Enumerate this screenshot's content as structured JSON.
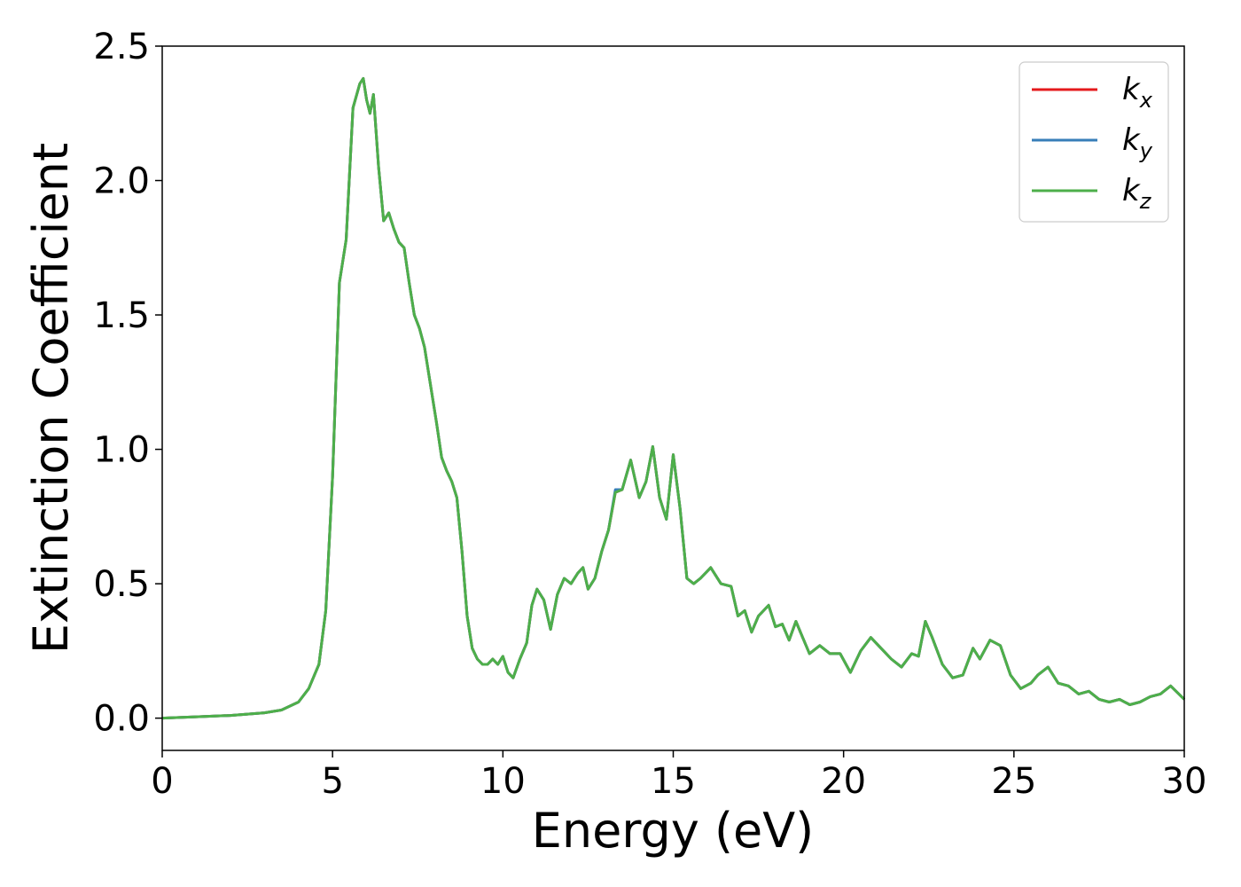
{
  "chart_data": {
    "type": "line",
    "xlabel": "Energy (eV)",
    "ylabel": "Extinction Coefficient",
    "xlim": [
      0,
      30
    ],
    "ylim": [
      -0.12,
      2.5
    ],
    "xticks": [
      "0",
      "5",
      "10",
      "15",
      "20",
      "25",
      "30"
    ],
    "yticks": [
      "0.0",
      "0.5",
      "1.0",
      "1.5",
      "2.0",
      "2.5"
    ],
    "grid": false,
    "legend_position": "top-right",
    "x": [
      0,
      1,
      2,
      3,
      3.5,
      4,
      4.3,
      4.6,
      4.8,
      5,
      5.2,
      5.4,
      5.6,
      5.8,
      5.9,
      6,
      6.1,
      6.2,
      6.35,
      6.5,
      6.65,
      6.8,
      6.95,
      7.1,
      7.25,
      7.4,
      7.55,
      7.7,
      7.9,
      8.05,
      8.2,
      8.35,
      8.5,
      8.65,
      8.8,
      8.95,
      9.1,
      9.25,
      9.4,
      9.55,
      9.7,
      9.85,
      10,
      10.15,
      10.3,
      10.5,
      10.7,
      10.85,
      11,
      11.2,
      11.4,
      11.6,
      11.8,
      12,
      12.2,
      12.35,
      12.5,
      12.7,
      12.9,
      13.1,
      13.3,
      13.5,
      13.75,
      14,
      14.2,
      14.4,
      14.6,
      14.8,
      15,
      15.2,
      15.4,
      15.6,
      15.8,
      16.1,
      16.4,
      16.7,
      16.9,
      17.1,
      17.3,
      17.5,
      17.8,
      18,
      18.2,
      18.4,
      18.6,
      18.8,
      19,
      19.3,
      19.6,
      19.9,
      20.2,
      20.5,
      20.8,
      21.1,
      21.4,
      21.7,
      22,
      22.2,
      22.4,
      22.6,
      22.9,
      23.2,
      23.5,
      23.8,
      24,
      24.3,
      24.6,
      24.9,
      25.2,
      25.5,
      25.7,
      26,
      26.3,
      26.6,
      26.9,
      27.2,
      27.5,
      27.8,
      28.1,
      28.4,
      28.7,
      29,
      29.3,
      29.6,
      30
    ],
    "series": [
      {
        "name": "k_x",
        "label_main": "k",
        "label_sub": "x",
        "color": "#e41a1c",
        "values": [
          0,
          0.005,
          0.01,
          0.02,
          0.03,
          0.06,
          0.11,
          0.2,
          0.4,
          0.9,
          1.62,
          1.78,
          2.27,
          2.36,
          2.38,
          2.3,
          2.25,
          2.32,
          2.05,
          1.85,
          1.88,
          1.82,
          1.77,
          1.75,
          1.62,
          1.5,
          1.45,
          1.38,
          1.22,
          1.1,
          0.97,
          0.92,
          0.88,
          0.82,
          0.62,
          0.38,
          0.26,
          0.22,
          0.2,
          0.2,
          0.22,
          0.2,
          0.23,
          0.17,
          0.15,
          0.22,
          0.28,
          0.42,
          0.48,
          0.44,
          0.33,
          0.46,
          0.52,
          0.5,
          0.54,
          0.56,
          0.48,
          0.52,
          0.62,
          0.7,
          0.84,
          0.85,
          0.96,
          0.82,
          0.88,
          1.01,
          0.82,
          0.74,
          0.98,
          0.78,
          0.52,
          0.5,
          0.52,
          0.56,
          0.5,
          0.49,
          0.38,
          0.4,
          0.32,
          0.38,
          0.42,
          0.34,
          0.35,
          0.29,
          0.36,
          0.3,
          0.24,
          0.27,
          0.24,
          0.24,
          0.17,
          0.25,
          0.3,
          0.26,
          0.22,
          0.19,
          0.24,
          0.23,
          0.36,
          0.3,
          0.2,
          0.15,
          0.16,
          0.26,
          0.22,
          0.29,
          0.27,
          0.16,
          0.11,
          0.13,
          0.16,
          0.19,
          0.13,
          0.12,
          0.09,
          0.1,
          0.07,
          0.06,
          0.07,
          0.05,
          0.06,
          0.08,
          0.09,
          0.12,
          0.07
        ]
      },
      {
        "name": "k_y",
        "label_main": "k",
        "label_sub": "y",
        "color": "#377eb8",
        "values": [
          0,
          0.005,
          0.01,
          0.02,
          0.03,
          0.06,
          0.11,
          0.2,
          0.4,
          0.9,
          1.62,
          1.78,
          2.27,
          2.36,
          2.38,
          2.3,
          2.25,
          2.32,
          2.05,
          1.85,
          1.88,
          1.82,
          1.77,
          1.75,
          1.62,
          1.5,
          1.45,
          1.38,
          1.22,
          1.1,
          0.97,
          0.92,
          0.88,
          0.82,
          0.62,
          0.38,
          0.26,
          0.22,
          0.2,
          0.2,
          0.22,
          0.2,
          0.23,
          0.17,
          0.15,
          0.22,
          0.28,
          0.42,
          0.48,
          0.44,
          0.33,
          0.46,
          0.52,
          0.5,
          0.54,
          0.56,
          0.48,
          0.52,
          0.62,
          0.7,
          0.85,
          0.85,
          0.96,
          0.82,
          0.88,
          1.01,
          0.82,
          0.74,
          0.98,
          0.78,
          0.52,
          0.5,
          0.52,
          0.56,
          0.5,
          0.49,
          0.38,
          0.4,
          0.32,
          0.38,
          0.42,
          0.34,
          0.35,
          0.29,
          0.36,
          0.3,
          0.24,
          0.27,
          0.24,
          0.24,
          0.17,
          0.25,
          0.3,
          0.26,
          0.22,
          0.19,
          0.24,
          0.23,
          0.36,
          0.3,
          0.2,
          0.15,
          0.16,
          0.26,
          0.22,
          0.29,
          0.27,
          0.16,
          0.11,
          0.13,
          0.16,
          0.19,
          0.13,
          0.12,
          0.09,
          0.1,
          0.07,
          0.06,
          0.07,
          0.05,
          0.06,
          0.08,
          0.09,
          0.12,
          0.07
        ]
      },
      {
        "name": "k_z",
        "label_main": "k",
        "label_sub": "z",
        "color": "#4daf4a",
        "values": [
          0,
          0.005,
          0.01,
          0.02,
          0.03,
          0.06,
          0.11,
          0.2,
          0.4,
          0.9,
          1.62,
          1.78,
          2.27,
          2.36,
          2.38,
          2.3,
          2.25,
          2.32,
          2.05,
          1.85,
          1.88,
          1.82,
          1.77,
          1.75,
          1.62,
          1.5,
          1.45,
          1.38,
          1.22,
          1.1,
          0.97,
          0.92,
          0.88,
          0.82,
          0.62,
          0.38,
          0.26,
          0.22,
          0.2,
          0.2,
          0.22,
          0.2,
          0.23,
          0.17,
          0.15,
          0.22,
          0.28,
          0.42,
          0.48,
          0.44,
          0.33,
          0.46,
          0.52,
          0.5,
          0.54,
          0.56,
          0.48,
          0.52,
          0.62,
          0.7,
          0.84,
          0.85,
          0.96,
          0.82,
          0.88,
          1.01,
          0.82,
          0.74,
          0.98,
          0.78,
          0.52,
          0.5,
          0.52,
          0.56,
          0.5,
          0.49,
          0.38,
          0.4,
          0.32,
          0.38,
          0.42,
          0.34,
          0.35,
          0.29,
          0.36,
          0.3,
          0.24,
          0.27,
          0.24,
          0.24,
          0.17,
          0.25,
          0.3,
          0.26,
          0.22,
          0.19,
          0.24,
          0.23,
          0.36,
          0.3,
          0.2,
          0.15,
          0.16,
          0.26,
          0.22,
          0.29,
          0.27,
          0.16,
          0.11,
          0.13,
          0.16,
          0.19,
          0.13,
          0.12,
          0.09,
          0.1,
          0.07,
          0.06,
          0.07,
          0.05,
          0.06,
          0.08,
          0.09,
          0.12,
          0.07
        ]
      }
    ]
  }
}
